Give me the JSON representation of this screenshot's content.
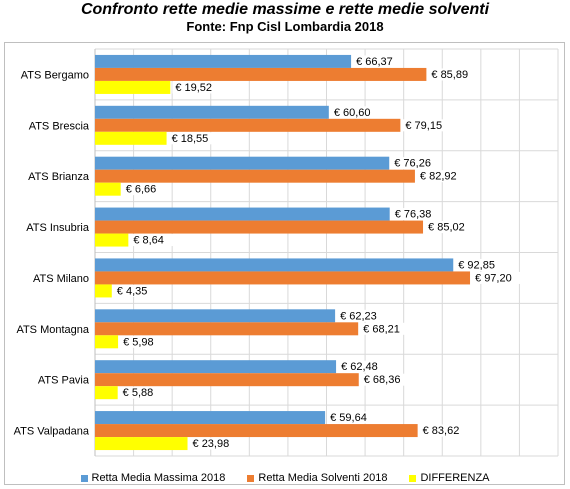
{
  "title": "Confronto rette medie massime e rette medie solventi",
  "subtitle": "Fonte: Fnp Cisl Lombardia 2018",
  "colors": {
    "series_1": "#5b9bd5",
    "series_2": "#ed7d31",
    "series_3": "#ffff00",
    "grid": "#d9d9d9",
    "plot_border": "#bfbfbf"
  },
  "chart_data": {
    "type": "bar",
    "orientation": "horizontal",
    "title": "Confronto rette medie massime e rette medie solventi",
    "subtitle": "Fonte: Fnp Cisl Lombardia 2018",
    "categories": [
      "ATS Bergamo",
      "ATS Brescia",
      "ATS Brianza",
      "ATS Insubria",
      "ATS Milano",
      "ATS Montagna",
      "ATS Pavia",
      "ATS Valpadana"
    ],
    "series": [
      {
        "name": "Retta Media Massima 2018",
        "values": [
          66.37,
          60.6,
          76.26,
          76.38,
          92.85,
          62.23,
          62.48,
          59.64
        ],
        "labels": [
          "€ 66,37",
          "€ 60,60",
          "€ 76,26",
          "€ 76,38",
          "€ 92,85",
          "€ 62,23",
          "€ 62,48",
          "€ 59,64"
        ]
      },
      {
        "name": "Retta Media Solventi 2018",
        "values": [
          85.89,
          79.15,
          82.92,
          85.02,
          97.2,
          68.21,
          68.36,
          83.62
        ],
        "labels": [
          "€ 85,89",
          "€ 79,15",
          "€ 82,92",
          "€ 85,02",
          "€ 97,20",
          "€ 68,21",
          "€ 68,36",
          "€ 83,62"
        ]
      },
      {
        "name": "DIFFERENZA",
        "values": [
          19.52,
          18.55,
          6.66,
          8.64,
          4.35,
          5.98,
          5.88,
          23.98
        ],
        "labels": [
          "€ 19,52",
          "€ 18,55",
          "€ 6,66",
          "€ 8,64",
          "€ 4,35",
          "€ 5,98",
          "€ 5,88",
          "€ 23,98"
        ]
      }
    ],
    "xlim": [
      0,
      120
    ],
    "grid": true,
    "legend_position": "bottom",
    "axis_tick_labels_shown": false
  }
}
